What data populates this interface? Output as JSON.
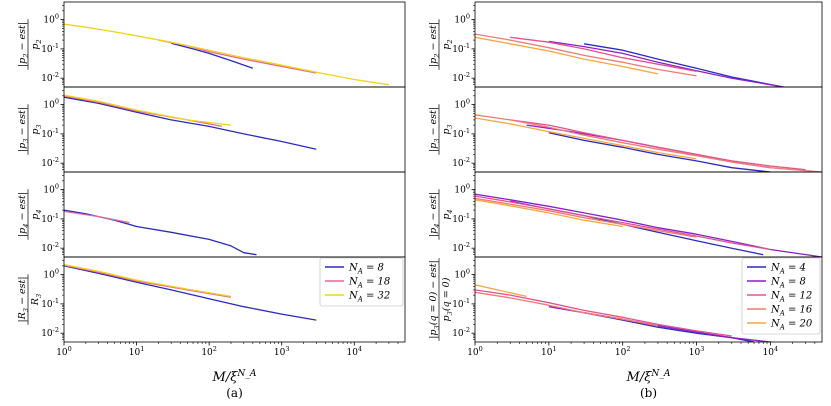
{
  "chart_data": [
    {
      "type": "line",
      "panel_label": "(a)",
      "xlabel": "M/ξ^{N_A}",
      "xscale": "log",
      "xlim": [
        1,
        50000
      ],
      "x_ticks": [
        "10^0",
        "10^1",
        "10^2",
        "10^3",
        "10^4"
      ],
      "legend": {
        "placement": "in bottom subplot, right",
        "entries": [
          "N_A = 8",
          "N_A = 18",
          "N_A = 32"
        ]
      },
      "subplots": [
        {
          "ylabel_num": "|p_2 − est|",
          "ylabel_den": "p_2",
          "yscale": "log",
          "ylim": [
            0.005,
            4
          ],
          "y_ticks": [
            "10^0",
            "10^-1",
            "10^-2"
          ],
          "series": [
            {
              "name": "N_A = 8",
              "color": "#2b2bbd",
              "x": [
                30,
                60,
                100,
                200,
                400
              ],
              "y": [
                0.155,
                0.1,
                0.07,
                0.04,
                0.022
              ]
            },
            {
              "name": "N_A = 18",
              "color": "#e36a93",
              "x": [
                20,
                50,
                100,
                300,
                1000,
                3000
              ],
              "y": [
                0.2,
                0.13,
                0.08,
                0.045,
                0.025,
                0.015
              ]
            },
            {
              "name": "N_A = 32",
              "color": "#f2d21b",
              "x": [
                1,
                2,
                5,
                10,
                30,
                100,
                300,
                1000,
                3000,
                10000,
                30000
              ],
              "y": [
                0.7,
                0.55,
                0.38,
                0.28,
                0.17,
                0.09,
                0.05,
                0.028,
                0.016,
                0.009,
                0.006
              ]
            }
          ]
        },
        {
          "ylabel_num": "|p_3 − est|",
          "ylabel_den": "p_3",
          "yscale": "log",
          "ylim": [
            0.005,
            4
          ],
          "y_ticks": [
            "10^0",
            "10^-1",
            "10^-2"
          ],
          "series": [
            {
              "name": "N_A = 8",
              "color": "#2b2bbd",
              "x": [
                1,
                3,
                10,
                30,
                100,
                300,
                1000,
                3000
              ],
              "y": [
                1.8,
                1.1,
                0.55,
                0.3,
                0.18,
                0.1,
                0.055,
                0.03
              ]
            },
            {
              "name": "N_A = 18",
              "color": "#e36a93",
              "x": [
                1,
                3,
                10,
                50,
                150
              ],
              "y": [
                2.0,
                1.2,
                0.6,
                0.3,
                0.18
              ]
            },
            {
              "name": "N_A = 32",
              "color": "#f2d21b",
              "x": [
                1,
                3,
                10,
                50,
                200
              ],
              "y": [
                2.1,
                1.3,
                0.65,
                0.3,
                0.2
              ]
            }
          ]
        },
        {
          "ylabel_num": "|p_4 − est|",
          "ylabel_den": "p_4",
          "yscale": "log",
          "ylim": [
            0.005,
            4
          ],
          "y_ticks": [
            "10^0",
            "10^-1",
            "10^-2"
          ],
          "series": [
            {
              "name": "N_A = 8",
              "color": "#2b2bbd",
              "x": [
                1,
                2,
                5,
                10,
                30,
                100,
                200,
                300,
                450
              ],
              "y": [
                0.2,
                0.15,
                0.09,
                0.055,
                0.035,
                0.02,
                0.012,
                0.007,
                0.006
              ]
            },
            {
              "name": "N_A = 18",
              "color": "#e36a93",
              "x": [
                1,
                3,
                8
              ],
              "y": [
                0.18,
                0.12,
                0.075
              ]
            }
          ]
        },
        {
          "ylabel_num": "|R_3 − est|",
          "ylabel_den": "R_3",
          "yscale": "log",
          "ylim": [
            0.005,
            4
          ],
          "y_ticks": [
            "10^0",
            "10^-1",
            "10^-2"
          ],
          "series": [
            {
              "name": "N_A = 8",
              "color": "#2b2bbd",
              "x": [
                1,
                3,
                10,
                30,
                100,
                300,
                1000,
                3000
              ],
              "y": [
                2.0,
                1.1,
                0.55,
                0.3,
                0.15,
                0.08,
                0.045,
                0.028
              ]
            },
            {
              "name": "N_A = 18",
              "color": "#e36a93",
              "x": [
                1,
                3,
                10,
                50,
                200
              ],
              "y": [
                2.1,
                1.2,
                0.6,
                0.3,
                0.17
              ]
            },
            {
              "name": "N_A = 32",
              "color": "#f2d21b",
              "x": [
                1,
                3,
                10,
                50,
                200
              ],
              "y": [
                2.2,
                1.3,
                0.65,
                0.32,
                0.18
              ]
            }
          ]
        }
      ]
    },
    {
      "type": "line",
      "panel_label": "(b)",
      "xlabel": "M/ξ^{N_A}",
      "xscale": "log",
      "xlim": [
        1,
        50000
      ],
      "x_ticks": [
        "10^0",
        "10^1",
        "10^2",
        "10^3",
        "10^4"
      ],
      "legend": {
        "placement": "in bottom subplot, right",
        "entries": [
          "N_A = 4",
          "N_A = 8",
          "N_A = 12",
          "N_A = 16",
          "N_A = 20"
        ]
      },
      "subplots": [
        {
          "ylabel_num": "|p_2 − est|",
          "ylabel_den": "p_2",
          "yscale": "log",
          "ylim": [
            0.005,
            4
          ],
          "y_ticks": [
            "10^0",
            "10^-1",
            "10^-2"
          ],
          "series": [
            {
              "name": "N_A = 4",
              "color": "#2b2bbd",
              "x": [
                30,
                100,
                300,
                1000,
                3000,
                15000
              ],
              "y": [
                0.15,
                0.09,
                0.045,
                0.022,
                0.011,
                0.005
              ]
            },
            {
              "name": "N_A = 8",
              "color": "#8b1fc9",
              "x": [
                10,
                30,
                100,
                300,
                1000,
                3000,
                15000
              ],
              "y": [
                0.18,
                0.12,
                0.07,
                0.035,
                0.018,
                0.01,
                0.005
              ]
            },
            {
              "name": "N_A = 12",
              "color": "#e2538f",
              "x": [
                3,
                10,
                30,
                100,
                300,
                1000
              ],
              "y": [
                0.25,
                0.17,
                0.1,
                0.05,
                0.03,
                0.017
              ]
            },
            {
              "name": "N_A = 16",
              "color": "#f07a73",
              "x": [
                1,
                3,
                10,
                30,
                100,
                300,
                1000
              ],
              "y": [
                0.32,
                0.2,
                0.11,
                0.06,
                0.035,
                0.02,
                0.012
              ]
            },
            {
              "name": "N_A = 20",
              "color": "#f4a742",
              "x": [
                1,
                3,
                10,
                30,
                100,
                300
              ],
              "y": [
                0.25,
                0.15,
                0.085,
                0.045,
                0.025,
                0.014
              ]
            }
          ]
        },
        {
          "ylabel_num": "|p_3 − est|",
          "ylabel_den": "p_3",
          "yscale": "log",
          "ylim": [
            0.005,
            4
          ],
          "y_ticks": [
            "10^0",
            "10^-1",
            "10^-2"
          ],
          "series": [
            {
              "name": "N_A = 4",
              "color": "#2b2bbd",
              "x": [
                10,
                30,
                100,
                300,
                1000,
                3000,
                10000
              ],
              "y": [
                0.11,
                0.06,
                0.035,
                0.02,
                0.012,
                0.007,
                0.005
              ]
            },
            {
              "name": "N_A = 8",
              "color": "#8b1fc9",
              "x": [
                5,
                20,
                100,
                300,
                1000,
                3000,
                10000
              ],
              "y": [
                0.2,
                0.12,
                0.06,
                0.035,
                0.02,
                0.011,
                0.007
              ]
            },
            {
              "name": "N_A = 12",
              "color": "#e2538f",
              "x": [
                3,
                10,
                30,
                100,
                300,
                1000,
                3000,
                10000,
                30000
              ],
              "y": [
                0.3,
                0.2,
                0.11,
                0.06,
                0.035,
                0.02,
                0.012,
                0.008,
                0.006
              ]
            },
            {
              "name": "N_A = 16",
              "color": "#f07a73",
              "x": [
                1,
                3,
                10,
                30,
                100,
                300,
                1000,
                3000,
                10000,
                50000
              ],
              "y": [
                0.45,
                0.3,
                0.17,
                0.09,
                0.05,
                0.03,
                0.018,
                0.011,
                0.007,
                0.005
              ]
            },
            {
              "name": "N_A = 20",
              "color": "#f4a742",
              "x": [
                1,
                3,
                10,
                30,
                100,
                300,
                1000
              ],
              "y": [
                0.35,
                0.22,
                0.12,
                0.07,
                0.04,
                0.023,
                0.014
              ]
            }
          ]
        },
        {
          "ylabel_num": "|p_4 − est|",
          "ylabel_den": "p_4",
          "yscale": "log",
          "ylim": [
            0.005,
            4
          ],
          "y_ticks": [
            "10^0",
            "10^-1",
            "10^-2"
          ],
          "series": [
            {
              "name": "N_A = 4",
              "color": "#2b2bbd",
              "x": [
                3,
                10,
                30,
                100,
                300,
                1000,
                3000,
                8000
              ],
              "y": [
                0.4,
                0.22,
                0.13,
                0.065,
                0.035,
                0.018,
                0.01,
                0.006
              ]
            },
            {
              "name": "N_A = 8",
              "color": "#8b1fc9",
              "x": [
                1,
                3,
                10,
                30,
                100,
                300,
                1000,
                3000,
                10000,
                50000
              ],
              "y": [
                0.7,
                0.45,
                0.27,
                0.16,
                0.09,
                0.05,
                0.03,
                0.017,
                0.009,
                0.005
              ]
            },
            {
              "name": "N_A = 12",
              "color": "#e2538f",
              "x": [
                1,
                3,
                10,
                30,
                100,
                300,
                1000,
                3000,
                10000
              ],
              "y": [
                0.6,
                0.38,
                0.22,
                0.13,
                0.075,
                0.045,
                0.026,
                0.015,
                0.009
              ]
            },
            {
              "name": "N_A = 16",
              "color": "#f07a73",
              "x": [
                1,
                3,
                10,
                30,
                100,
                300,
                1000
              ],
              "y": [
                0.5,
                0.32,
                0.19,
                0.11,
                0.065,
                0.04,
                0.024
              ]
            },
            {
              "name": "N_A = 20",
              "color": "#f4a742",
              "x": [
                1,
                3,
                10,
                30,
                100
              ],
              "y": [
                0.45,
                0.28,
                0.16,
                0.09,
                0.055
              ]
            }
          ]
        },
        {
          "ylabel_num": "|p_3(q = 0) − est|",
          "ylabel_den": "p_3(q = 0)",
          "yscale": "log",
          "ylim": [
            0.005,
            4
          ],
          "y_ticks": [
            "10^0",
            "10^-1",
            "10^-2"
          ],
          "series": [
            {
              "name": "N_A = 4",
              "color": "#2b2bbd",
              "x": [
                30,
                100,
                300,
                1000,
                3000,
                6000
              ],
              "y": [
                0.05,
                0.028,
                0.016,
                0.01,
                0.007,
                0.005
              ]
            },
            {
              "name": "N_A = 8",
              "color": "#8b1fc9",
              "x": [
                10,
                30,
                100,
                300,
                1000,
                3000,
                10000,
                20000
              ],
              "y": [
                0.08,
                0.05,
                0.03,
                0.018,
                0.011,
                0.007,
                0.005,
                0.004
              ]
            },
            {
              "name": "N_A = 12",
              "color": "#e2538f",
              "x": [
                1,
                3,
                10,
                30,
                100,
                300,
                1000,
                3000
              ],
              "y": [
                0.3,
                0.2,
                0.11,
                0.06,
                0.035,
                0.02,
                0.012,
                0.008
              ]
            },
            {
              "name": "N_A = 16",
              "color": "#f07a73",
              "x": [
                1,
                3,
                10,
                30,
                100,
                300
              ],
              "y": [
                0.25,
                0.16,
                0.09,
                0.05,
                0.03,
                0.018
              ]
            },
            {
              "name": "N_A = 20",
              "color": "#f4a742",
              "x": [
                1,
                2,
                5
              ],
              "y": [
                0.45,
                0.3,
                0.18
              ]
            }
          ]
        }
      ]
    }
  ]
}
